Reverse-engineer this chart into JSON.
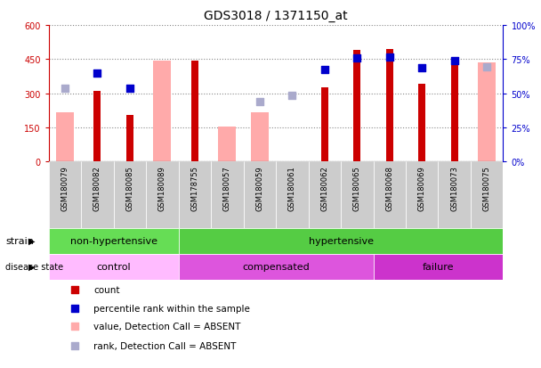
{
  "title": "GDS3018 / 1371150_at",
  "samples": [
    "GSM180079",
    "GSM180082",
    "GSM180085",
    "GSM180089",
    "GSM178755",
    "GSM180057",
    "GSM180059",
    "GSM180061",
    "GSM180062",
    "GSM180065",
    "GSM180068",
    "GSM180069",
    "GSM180073",
    "GSM180075"
  ],
  "count_values": [
    null,
    310,
    205,
    null,
    445,
    null,
    null,
    null,
    325,
    490,
    495,
    340,
    445,
    null
  ],
  "count_absent": [
    215,
    null,
    null,
    445,
    null,
    155,
    215,
    null,
    null,
    null,
    null,
    null,
    null,
    435
  ],
  "percentile_values": [
    null,
    390,
    320,
    null,
    null,
    null,
    null,
    null,
    405,
    455,
    460,
    410,
    445,
    null
  ],
  "percentile_absent": [
    320,
    null,
    null,
    null,
    null,
    null,
    265,
    290,
    null,
    null,
    null,
    null,
    null,
    415
  ],
  "ylim_left": [
    0,
    600
  ],
  "ylim_right": [
    0,
    100
  ],
  "yticks_left": [
    0,
    150,
    300,
    450,
    600
  ],
  "yticks_right": [
    0,
    25,
    50,
    75,
    100
  ],
  "ytick_labels_left": [
    "0",
    "150",
    "300",
    "450",
    "600"
  ],
  "ytick_labels_right": [
    "0%",
    "25%",
    "50%",
    "75%",
    "100%"
  ],
  "strain_groups": [
    {
      "label": "non-hypertensive",
      "start": 0,
      "end": 4,
      "color": "#66dd55"
    },
    {
      "label": "hypertensive",
      "start": 4,
      "end": 14,
      "color": "#55cc44"
    }
  ],
  "disease_groups": [
    {
      "label": "control",
      "start": 0,
      "end": 4,
      "color": "#ffbbff"
    },
    {
      "label": "compensated",
      "start": 4,
      "end": 10,
      "color": "#dd55dd"
    },
    {
      "label": "failure",
      "start": 10,
      "end": 14,
      "color": "#cc33cc"
    }
  ],
  "count_color": "#cc0000",
  "count_absent_color": "#ffaaaa",
  "percentile_color": "#0000cc",
  "percentile_absent_color": "#aaaacc",
  "background_color": "#ffffff",
  "plot_bg_color": "#ffffff",
  "grid_color": "#888888",
  "xtick_bg_color": "#cccccc"
}
